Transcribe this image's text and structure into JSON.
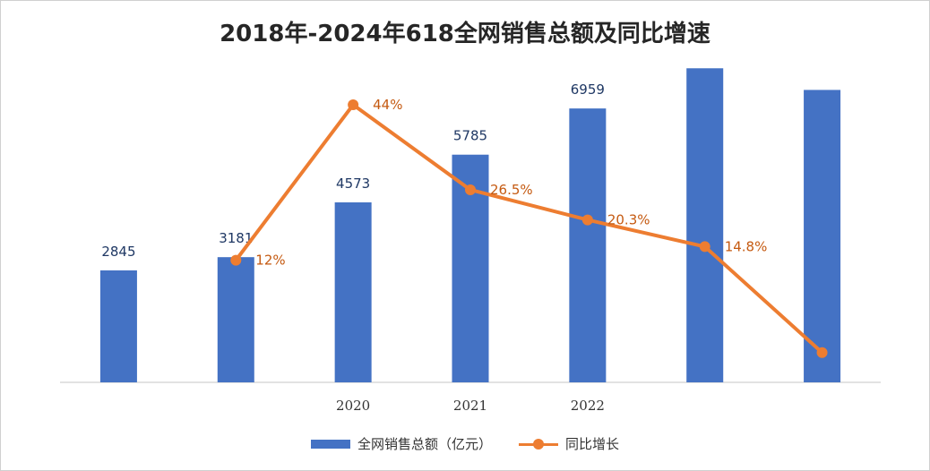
{
  "chart_data": {
    "type": "bar",
    "title": "2018年-2024年618全网销售总额及同比增速",
    "categories": [
      "",
      "",
      "2020",
      "2021",
      "2022",
      "",
      ""
    ],
    "series": [
      {
        "name": "全网销售总额（亿元）",
        "type": "bar",
        "values": [
          2845,
          3181,
          4573,
          5785,
          6959,
          7980,
          7430
        ],
        "labels": [
          "2845",
          "3181",
          "4573",
          "5785",
          "6959",
          "",
          ""
        ]
      },
      {
        "name": "同比增长",
        "type": "line",
        "axis": "secondary",
        "values": [
          null,
          12,
          44,
          26.5,
          20.3,
          14.8,
          -7
        ],
        "labels": [
          "",
          "12%",
          "44%",
          "26.5%",
          "20.3%",
          "14.8%",
          ""
        ]
      }
    ],
    "ylim": [
      0,
      8600
    ],
    "y2lim": [
      -10,
      50
    ],
    "grid": false,
    "legend_position": "bottom",
    "colors": {
      "bar": "#4472c4",
      "line": "#ed7d31",
      "bar_label": "#1f3864",
      "line_label": "#c55a11"
    }
  }
}
